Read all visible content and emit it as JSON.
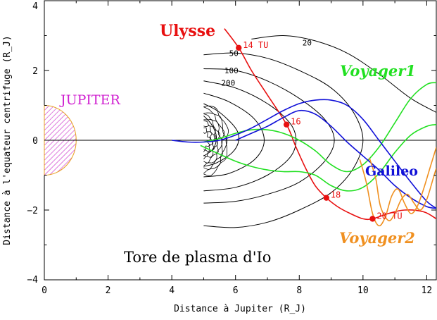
{
  "chart_data": {
    "type": "line",
    "xlabel": "Distance à Jupiter (R_J)",
    "ylabel": "Distance à l'equateur centrifuge (R_J)",
    "xlim": [
      0,
      12.3
    ],
    "ylim": [
      -4,
      4
    ],
    "xticks": [
      "0",
      "2",
      "4",
      "6",
      "8",
      "10",
      "12"
    ],
    "yticks": [
      "4",
      "2",
      "0",
      "−2",
      "−4"
    ],
    "jupiter_label": "JUPITER",
    "torus_label": "Tore de plasma d'Io",
    "series": [
      {
        "name": "Ulysse",
        "color": "#e81010",
        "points": [
          [
            5.65,
            3.2
          ],
          [
            6.1,
            2.65
          ],
          [
            6.5,
            2.0
          ],
          [
            7.0,
            1.3
          ],
          [
            7.6,
            0.45
          ],
          [
            7.9,
            -0.2
          ],
          [
            8.2,
            -0.8
          ],
          [
            8.5,
            -1.3
          ],
          [
            8.85,
            -1.65
          ],
          [
            9.2,
            -1.9
          ],
          [
            9.6,
            -2.1
          ],
          [
            10.0,
            -2.25
          ],
          [
            10.3,
            -2.25
          ],
          [
            10.8,
            -2.1
          ],
          [
            11.3,
            -2.0
          ],
          [
            11.9,
            -2.05
          ],
          [
            12.3,
            -2.25
          ]
        ],
        "markers": [
          {
            "x": 6.1,
            "y": 2.65,
            "label": "14 TU"
          },
          {
            "x": 7.6,
            "y": 0.45,
            "label": "16"
          },
          {
            "x": 8.85,
            "y": -1.65,
            "label": "18"
          },
          {
            "x": 10.3,
            "y": -2.25,
            "label": "20 TU"
          }
        ]
      },
      {
        "name": "Voyager1",
        "color": "#22e022",
        "points": [
          [
            5.0,
            -0.05
          ],
          [
            5.5,
            0.05
          ],
          [
            6.0,
            0.2
          ],
          [
            6.5,
            0.3
          ],
          [
            7.0,
            0.3
          ],
          [
            7.5,
            0.2
          ],
          [
            8.0,
            0.0
          ],
          [
            8.5,
            -0.3
          ],
          [
            9.0,
            -0.7
          ],
          [
            9.5,
            -0.9
          ],
          [
            10.0,
            -0.7
          ],
          [
            10.5,
            -0.2
          ],
          [
            11.0,
            0.5
          ],
          [
            11.5,
            1.2
          ],
          [
            12.0,
            1.6
          ],
          [
            12.3,
            1.65
          ]
        ]
      },
      {
        "name": "Voyager1 (2)",
        "color": "#22e022",
        "points": [
          [
            4.9,
            -0.15
          ],
          [
            5.5,
            -0.4
          ],
          [
            6.0,
            -0.6
          ],
          [
            6.5,
            -0.75
          ],
          [
            7.0,
            -0.85
          ],
          [
            7.5,
            -0.9
          ],
          [
            8.0,
            -0.9
          ],
          [
            8.5,
            -1.0
          ],
          [
            9.0,
            -1.3
          ],
          [
            9.5,
            -1.45
          ],
          [
            10.0,
            -1.35
          ],
          [
            10.5,
            -0.95
          ],
          [
            11.0,
            -0.35
          ],
          [
            11.5,
            0.15
          ],
          [
            12.0,
            0.4
          ],
          [
            12.3,
            0.45
          ]
        ]
      },
      {
        "name": "Galileo",
        "color": "#1010d8",
        "points": [
          [
            4.0,
            0.0
          ],
          [
            4.5,
            -0.05
          ],
          [
            5.0,
            -0.05
          ],
          [
            5.5,
            0.0
          ],
          [
            6.0,
            0.15
          ],
          [
            6.5,
            0.35
          ],
          [
            7.0,
            0.6
          ],
          [
            7.5,
            0.85
          ],
          [
            8.0,
            1.05
          ],
          [
            8.5,
            1.15
          ],
          [
            9.0,
            1.15
          ],
          [
            9.5,
            1.0
          ],
          [
            10.0,
            0.6
          ],
          [
            10.5,
            0.0
          ],
          [
            11.0,
            -0.6
          ],
          [
            11.5,
            -1.2
          ],
          [
            12.0,
            -1.75
          ],
          [
            12.3,
            -1.95
          ]
        ]
      },
      {
        "name": "Galileo (2)",
        "color": "#1010d8",
        "points": [
          [
            6.0,
            0.0
          ],
          [
            6.5,
            0.2
          ],
          [
            7.0,
            0.4
          ],
          [
            7.5,
            0.65
          ],
          [
            8.0,
            0.85
          ],
          [
            8.5,
            0.75
          ],
          [
            9.0,
            0.4
          ],
          [
            9.5,
            -0.05
          ],
          [
            10.0,
            -0.45
          ],
          [
            10.5,
            -0.85
          ],
          [
            11.0,
            -1.3
          ],
          [
            11.5,
            -1.65
          ],
          [
            12.0,
            -1.9
          ],
          [
            12.3,
            -1.95
          ]
        ]
      },
      {
        "name": "Voyager2",
        "color": "#f09020",
        "points": [
          [
            9.9,
            -0.55
          ],
          [
            10.1,
            -1.2
          ],
          [
            10.3,
            -2.1
          ],
          [
            10.5,
            -2.45
          ],
          [
            10.7,
            -2.2
          ],
          [
            10.9,
            -1.6
          ],
          [
            11.1,
            -1.4
          ],
          [
            11.3,
            -1.8
          ],
          [
            11.5,
            -2.1
          ],
          [
            11.7,
            -1.9
          ],
          [
            11.9,
            -1.4
          ],
          [
            12.1,
            -0.8
          ],
          [
            12.3,
            -0.2
          ]
        ]
      },
      {
        "name": "Voyager2 (2)",
        "color": "#f09020",
        "points": [
          [
            10.2,
            -0.5
          ],
          [
            10.4,
            -1.1
          ],
          [
            10.55,
            -1.9
          ],
          [
            10.8,
            -2.3
          ],
          [
            11.0,
            -2.1
          ],
          [
            11.2,
            -1.7
          ],
          [
            11.4,
            -1.55
          ],
          [
            11.6,
            -1.8
          ],
          [
            11.8,
            -2.0
          ],
          [
            12.0,
            -1.7
          ],
          [
            12.2,
            -1.1
          ],
          [
            12.3,
            -0.8
          ]
        ]
      }
    ],
    "contours": [
      {
        "label": "20",
        "label_at": [
          8.1,
          2.8
        ],
        "points": [
          [
            6.5,
            2.9
          ],
          [
            7.5,
            3.0
          ],
          [
            8.5,
            2.85
          ],
          [
            9.5,
            2.5
          ],
          [
            10.5,
            1.9
          ],
          [
            11.5,
            1.2
          ],
          [
            12.3,
            0.8
          ]
        ]
      },
      {
        "label": "50",
        "label_at": [
          5.8,
          2.5
        ],
        "points": [
          [
            5.0,
            2.45
          ],
          [
            6.0,
            2.5
          ],
          [
            7.0,
            2.35
          ],
          [
            8.0,
            2.0
          ],
          [
            9.0,
            1.5
          ],
          [
            9.7,
            0.8
          ],
          [
            10.0,
            0.0
          ],
          [
            9.7,
            -0.8
          ],
          [
            9.0,
            -1.5
          ],
          [
            8.0,
            -2.0
          ],
          [
            7.0,
            -2.35
          ],
          [
            6.0,
            -2.5
          ],
          [
            5.0,
            -2.45
          ]
        ]
      },
      {
        "label": "100",
        "label_at": [
          5.65,
          2.0
        ],
        "points": [
          [
            5.0,
            2.05
          ],
          [
            6.0,
            2.0
          ],
          [
            7.0,
            1.7
          ],
          [
            8.0,
            1.2
          ],
          [
            8.8,
            0.6
          ],
          [
            9.1,
            0.0
          ],
          [
            8.8,
            -0.6
          ],
          [
            8.0,
            -1.2
          ],
          [
            7.0,
            -1.55
          ],
          [
            6.0,
            -1.75
          ],
          [
            5.0,
            -1.8
          ]
        ]
      },
      {
        "label": "200",
        "label_at": [
          5.55,
          1.65
        ],
        "points": [
          [
            5.0,
            1.7
          ],
          [
            6.0,
            1.5
          ],
          [
            7.0,
            1.05
          ],
          [
            7.7,
            0.5
          ],
          [
            7.9,
            0.0
          ],
          [
            7.7,
            -0.5
          ],
          [
            7.0,
            -1.0
          ],
          [
            6.0,
            -1.35
          ],
          [
            5.0,
            -1.45
          ]
        ]
      },
      {
        "label": "",
        "label_at": null,
        "points": [
          [
            5.0,
            1.35
          ],
          [
            5.8,
            1.1
          ],
          [
            6.6,
            0.6
          ],
          [
            6.9,
            0.0
          ],
          [
            6.6,
            -0.55
          ],
          [
            5.8,
            -0.95
          ],
          [
            5.0,
            -1.05
          ]
        ]
      },
      {
        "label": "",
        "label_at": null,
        "points": [
          [
            5.0,
            1.05
          ],
          [
            5.5,
            0.8
          ],
          [
            6.0,
            0.35
          ],
          [
            6.1,
            0.0
          ],
          [
            5.9,
            -0.35
          ],
          [
            5.4,
            -0.65
          ],
          [
            5.0,
            -0.75
          ]
        ]
      },
      {
        "label": "",
        "label_at": null,
        "points": [
          [
            5.0,
            0.7
          ],
          [
            5.25,
            0.45
          ],
          [
            5.4,
            0.1
          ],
          [
            5.3,
            -0.25
          ],
          [
            5.0,
            -0.45
          ]
        ]
      }
    ]
  }
}
